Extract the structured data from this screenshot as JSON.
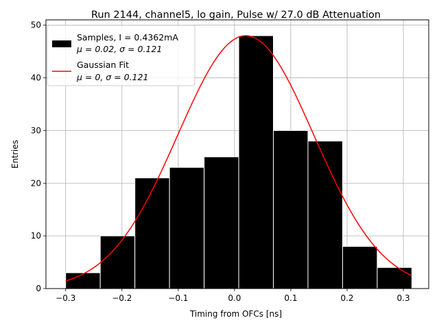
{
  "chart_data": {
    "type": "bar",
    "title": "Run 2144, channel5, lo gain, Pulse w/ 27.0 dB Attenuation",
    "xlabel": "Timing from OFCs [ns]",
    "ylabel": "Entries",
    "xlim": [
      -0.335,
      0.345
    ],
    "ylim": [
      0,
      51
    ],
    "grid": true,
    "legend_position": "top-left",
    "xticks": [
      -0.3,
      -0.2,
      -0.1,
      0.0,
      0.1,
      0.2,
      0.3
    ],
    "xtick_labels": [
      "−0.3",
      "−0.2",
      "−0.1",
      "0.0",
      "0.1",
      "0.2",
      "0.3"
    ],
    "yticks": [
      0,
      10,
      20,
      30,
      40,
      50
    ],
    "ytick_labels": [
      "0",
      "10",
      "20",
      "30",
      "40",
      "50"
    ],
    "bin_edges": [
      -0.3,
      -0.2385,
      -0.177,
      -0.1155,
      -0.054,
      0.0075,
      0.069,
      0.1305,
      0.192,
      0.2535,
      0.315
    ],
    "series": [
      {
        "name_line1": "Samples, I = 0.4362mA",
        "name_line2": "μ = 0.02, σ = 0.121",
        "kind": "histogram",
        "color": "#000000",
        "edgecolor": "#ffffff",
        "values": [
          3,
          10,
          21,
          23,
          25,
          48,
          30,
          28,
          8,
          4
        ]
      },
      {
        "name_line1": "Gaussian Fit",
        "name_line2": "μ = 0, σ = 0.121",
        "kind": "line",
        "color": "#ff0000",
        "amplitude": 48,
        "mean": 0.02,
        "sigma": 0.121,
        "x_range": [
          -0.3,
          0.315
        ]
      }
    ]
  }
}
